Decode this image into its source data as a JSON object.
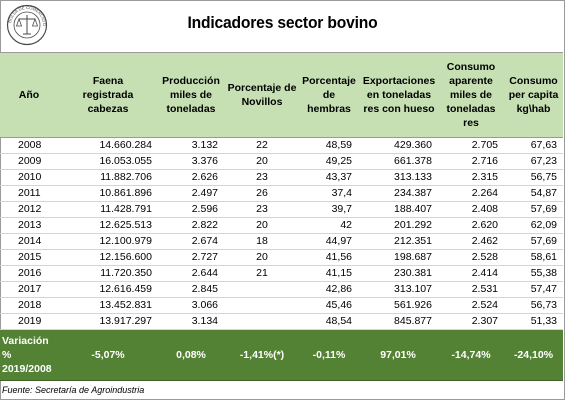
{
  "page": {
    "title": "Indicadores sector bovino",
    "seal_text": "BOLSA DE COMERCIO DE ROSARIO",
    "source": "Fuente: Secretaría de Agroindustria"
  },
  "table": {
    "headers": [
      "Año",
      "Faena registrada cabezas",
      "Producción miles de toneladas",
      "Porcentaje de Novillos",
      "Porcentaje de hembras",
      "Exportaciones en toneladas res con hueso",
      "Consumo aparente miles de toneladas res",
      "Consumo per capita kg\\hab"
    ],
    "rows": [
      [
        "2008",
        "14.660.284",
        "3.132",
        "22",
        "48,59",
        "429.360",
        "2.705",
        "67,63"
      ],
      [
        "2009",
        "16.053.055",
        "3.376",
        "20",
        "49,25",
        "661.378",
        "2.716",
        "67,23"
      ],
      [
        "2010",
        "11.882.706",
        "2.626",
        "23",
        "43,37",
        "313.133",
        "2.315",
        "56,75"
      ],
      [
        "2011",
        "10.861.896",
        "2.497",
        "26",
        "37,4",
        "234.387",
        "2.264",
        "54,87"
      ],
      [
        "2012",
        "11.428.791",
        "2.596",
        "23",
        "39,7",
        "188.407",
        "2.408",
        "57,69"
      ],
      [
        "2013",
        "12.625.513",
        "2.822",
        "20",
        "42",
        "201.292",
        "2.620",
        "62,09"
      ],
      [
        "2014",
        "12.100.979",
        "2.674",
        "18",
        "44,97",
        "212.351",
        "2.462",
        "57,69"
      ],
      [
        "2015",
        "12.156.600",
        "2.727",
        "20",
        "41,56",
        "198.687",
        "2.528",
        "58,61"
      ],
      [
        "2016",
        "11.720.350",
        "2.644",
        "21",
        "41,15",
        "230.381",
        "2.414",
        "55,38"
      ],
      [
        "2017",
        "12.616.459",
        "2.845",
        "",
        "42,86",
        "313.107",
        "2.531",
        "57,47"
      ],
      [
        "2018",
        "13.452.831",
        "3.066",
        "",
        "45,46",
        "561.926",
        "2.524",
        "56,73"
      ],
      [
        "2019",
        "13.917.297",
        "3.134",
        "",
        "48,54",
        "845.877",
        "2.307",
        "51,33"
      ]
    ],
    "variation": {
      "label_lines": [
        "Variación",
        "%",
        "2019/2008"
      ],
      "values": [
        "-5,07%",
        "0,08%",
        "-1,41%(*)",
        "-0,11%",
        "97,01%",
        "-14,74%",
        "-24,10%"
      ]
    }
  }
}
